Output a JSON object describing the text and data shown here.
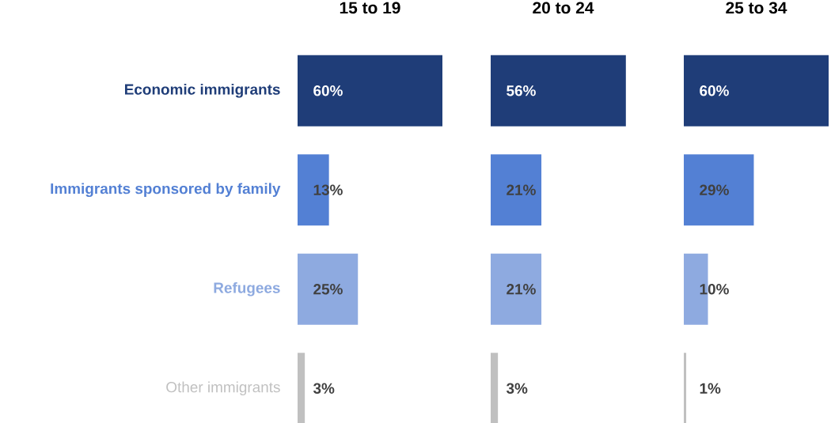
{
  "chart_data": [
    {
      "type": "bar",
      "orientation": "horizontal",
      "title": "15 to 19",
      "categories": [
        "Economic immigrants",
        "Immigrants sponsored by family",
        "Refugees",
        "Other immigrants"
      ],
      "values": [
        60,
        13,
        25,
        3
      ],
      "value_labels": [
        "60%",
        "13%",
        "25%",
        "3%"
      ],
      "colors": [
        "#1f3d78",
        "#5380d4",
        "#8eaae0",
        "#c0c0c0"
      ],
      "tick_labels": "y"
    },
    {
      "type": "bar",
      "orientation": "horizontal",
      "title": "20 to 24",
      "categories": [
        null,
        null,
        null,
        null
      ],
      "values": [
        56,
        21,
        21,
        3
      ],
      "value_labels": [
        "56%",
        "21%",
        "21%",
        "3%"
      ],
      "colors": [
        "#1f3d78",
        "#5380d4",
        "#8eaae0",
        "#c0c0c0"
      ],
      "tick_labels": false
    },
    {
      "type": "bar",
      "orientation": "horizontal",
      "title": "25 to 34",
      "categories": [
        null,
        null,
        null,
        null
      ],
      "values": [
        60,
        29,
        10,
        1
      ],
      "value_labels": [
        "60%",
        "29%",
        "10%",
        "1%"
      ],
      "colors": [
        "#1f3d78",
        "#5380d4",
        "#8eaae0",
        "#c0c0c0"
      ],
      "tick_labels": false
    }
  ]
}
